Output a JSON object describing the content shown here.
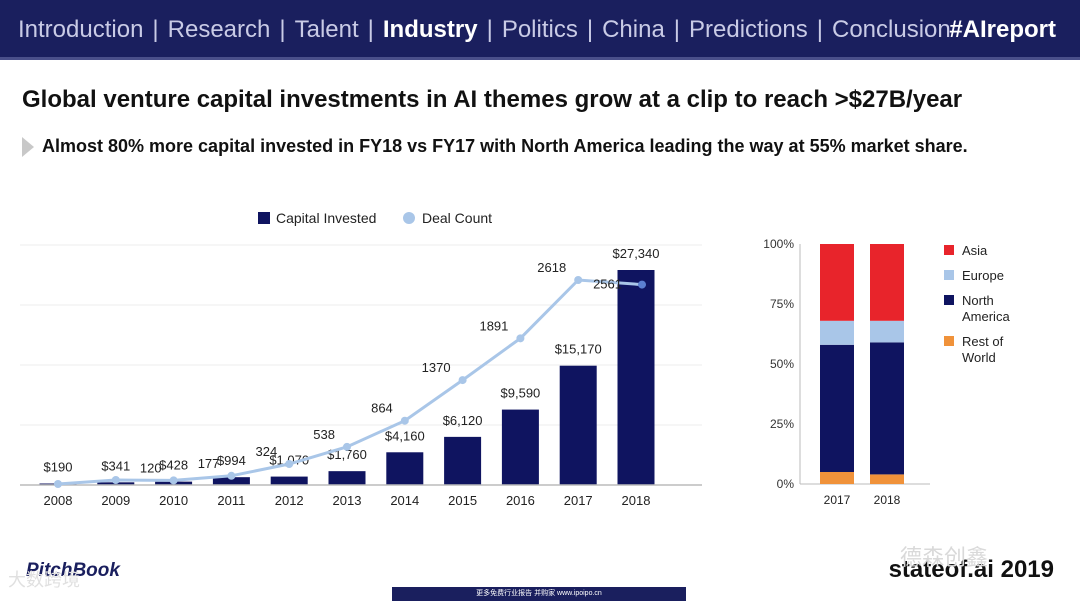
{
  "nav": {
    "items": [
      "Introduction",
      "Research",
      "Talent",
      "Industry",
      "Politics",
      "China",
      "Predictions",
      "Conclusion"
    ],
    "active": "Industry",
    "hashtag": "#AIreport"
  },
  "title": "Global venture capital investments in AI themes grow at a clip to reach >$27B/year",
  "subtitle": "Almost 80% more capital invested in FY18 vs FY17 with North America leading the way at 55% market share.",
  "colors": {
    "navy": "#1a1f5e",
    "bar": "#0f1460",
    "line": "#a9c6e8",
    "asia": "#e8242b",
    "europe": "#a9c6e8",
    "north_america": "#0f1460",
    "rest_of_world": "#f0923a"
  },
  "chart_data": [
    {
      "type": "bar",
      "legend": [
        "Capital Invested",
        "Deal Count"
      ],
      "categories": [
        "2008",
        "2009",
        "2010",
        "2011",
        "2012",
        "2013",
        "2014",
        "2015",
        "2016",
        "2017",
        "2018"
      ],
      "series": [
        {
          "name": "Capital Invested",
          "values": [
            190,
            341,
            428,
            994,
            1070,
            1760,
            4160,
            6120,
            9590,
            15170,
            27340
          ],
          "labels": [
            "$190",
            "$341",
            "$428",
            "$994",
            "$1,070",
            "$1,760",
            "$4,160",
            "$6,120",
            "$9,590",
            "$15,170",
            "$27,340"
          ]
        },
        {
          "name": "Deal Count",
          "type": "line",
          "values": [
            null,
            null,
            120,
            177,
            324,
            538,
            864,
            1370,
            1891,
            2618,
            2561
          ],
          "labels": [
            "",
            "",
            "120",
            "177",
            "324",
            "538",
            "864",
            "1370",
            "1891",
            "2618",
            "2561"
          ]
        }
      ]
    },
    {
      "type": "bar",
      "stacked": true,
      "categories": [
        "2017",
        "2018"
      ],
      "yticks": [
        "0%",
        "25%",
        "50%",
        "75%",
        "100%"
      ],
      "series": [
        {
          "name": "Rest of World",
          "values": [
            5,
            4
          ]
        },
        {
          "name": "North America",
          "values": [
            53,
            55
          ]
        },
        {
          "name": "Europe",
          "values": [
            10,
            9
          ]
        },
        {
          "name": "Asia",
          "values": [
            32,
            32
          ]
        }
      ],
      "legend": [
        "Asia",
        "Europe",
        "North America",
        "Rest of World"
      ]
    }
  ],
  "footer": {
    "logo": "PitchBook",
    "brand": "stateof.ai 2019",
    "strip_text": "更多免费行业报告 并购家 www.ipoipo.cn",
    "watermark_right": "德森创鑫",
    "watermark_left": "大数跨境"
  }
}
